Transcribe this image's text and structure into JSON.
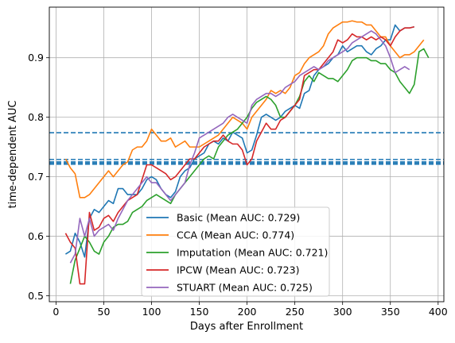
{
  "chart_data": {
    "type": "line",
    "xlabel": "Days after Enrollment",
    "ylabel": "time-dependent AUC",
    "xlim": [
      -7,
      406
    ],
    "ylim": [
      0.49,
      0.985
    ],
    "xticks": [
      0,
      50,
      100,
      150,
      200,
      250,
      300,
      350,
      400
    ],
    "yticks": [
      0.5,
      0.6,
      0.7,
      0.8,
      0.9
    ],
    "ytick_labels": [
      "0.5",
      "0.6",
      "0.7",
      "0.8",
      "0.9"
    ],
    "grid": true,
    "legend_position": "lower-center",
    "series": [
      {
        "name": "Basic (Mean AUC: 0.729)",
        "color": "#1f77b4",
        "mean": 0.729,
        "x": [
          10,
          15,
          20,
          25,
          30,
          35,
          40,
          45,
          50,
          55,
          60,
          65,
          70,
          75,
          80,
          85,
          90,
          95,
          100,
          105,
          110,
          115,
          120,
          125,
          130,
          135,
          140,
          145,
          150,
          155,
          160,
          165,
          170,
          175,
          180,
          185,
          190,
          195,
          200,
          205,
          210,
          215,
          220,
          225,
          230,
          235,
          240,
          245,
          250,
          255,
          260,
          265,
          270,
          275,
          280,
          285,
          290,
          295,
          300,
          305,
          310,
          315,
          320,
          325,
          330,
          335,
          340,
          345,
          350,
          355,
          360,
          365,
          370,
          375
        ],
        "y": [
          0.57,
          0.575,
          0.605,
          0.59,
          0.565,
          0.63,
          0.645,
          0.64,
          0.65,
          0.66,
          0.655,
          0.68,
          0.68,
          0.67,
          0.67,
          0.67,
          0.68,
          0.695,
          0.7,
          0.695,
          0.68,
          0.67,
          0.665,
          0.675,
          0.7,
          0.71,
          0.715,
          0.73,
          0.735,
          0.74,
          0.755,
          0.76,
          0.755,
          0.765,
          0.76,
          0.775,
          0.77,
          0.765,
          0.74,
          0.745,
          0.77,
          0.8,
          0.805,
          0.8,
          0.795,
          0.8,
          0.81,
          0.815,
          0.82,
          0.815,
          0.84,
          0.845,
          0.87,
          0.88,
          0.885,
          0.89,
          0.9,
          0.905,
          0.92,
          0.91,
          0.915,
          0.92,
          0.92,
          0.91,
          0.905,
          0.915,
          0.92,
          0.93,
          0.93,
          0.955,
          0.945,
          0.95,
          0.95,
          0.952
        ]
      },
      {
        "name": "CCA (Mean AUC: 0.774)",
        "color": "#ff7f0e",
        "mean": 0.774,
        "x": [
          10,
          15,
          20,
          25,
          30,
          35,
          40,
          45,
          50,
          55,
          60,
          65,
          70,
          75,
          80,
          85,
          90,
          95,
          100,
          105,
          110,
          115,
          120,
          125,
          130,
          135,
          140,
          145,
          150,
          155,
          160,
          165,
          170,
          175,
          180,
          185,
          190,
          195,
          200,
          205,
          210,
          215,
          220,
          225,
          230,
          235,
          240,
          245,
          250,
          255,
          260,
          265,
          270,
          275,
          280,
          285,
          290,
          295,
          300,
          305,
          310,
          315,
          320,
          325,
          330,
          335,
          340,
          345,
          350,
          355,
          360,
          365,
          370,
          375,
          380,
          385
        ],
        "y": [
          0.73,
          0.715,
          0.705,
          0.665,
          0.665,
          0.67,
          0.68,
          0.69,
          0.7,
          0.71,
          0.7,
          0.71,
          0.72,
          0.725,
          0.745,
          0.75,
          0.75,
          0.76,
          0.78,
          0.77,
          0.76,
          0.76,
          0.765,
          0.75,
          0.755,
          0.76,
          0.75,
          0.75,
          0.75,
          0.755,
          0.76,
          0.765,
          0.77,
          0.78,
          0.79,
          0.8,
          0.795,
          0.79,
          0.78,
          0.8,
          0.81,
          0.82,
          0.83,
          0.845,
          0.84,
          0.845,
          0.84,
          0.85,
          0.87,
          0.875,
          0.89,
          0.9,
          0.905,
          0.91,
          0.92,
          0.94,
          0.95,
          0.955,
          0.96,
          0.96,
          0.962,
          0.96,
          0.96,
          0.955,
          0.955,
          0.945,
          0.935,
          0.935,
          0.92,
          0.91,
          0.9,
          0.905,
          0.905,
          0.91,
          0.92,
          0.93
        ]
      },
      {
        "name": "Imputation (Mean AUC: 0.721)",
        "color": "#2ca02c",
        "mean": 0.721,
        "x": [
          15,
          20,
          25,
          30,
          35,
          40,
          45,
          50,
          55,
          60,
          65,
          70,
          75,
          80,
          85,
          90,
          95,
          100,
          105,
          110,
          115,
          120,
          125,
          130,
          135,
          140,
          145,
          150,
          155,
          160,
          165,
          170,
          175,
          180,
          185,
          190,
          195,
          200,
          205,
          210,
          215,
          220,
          225,
          230,
          235,
          240,
          245,
          250,
          255,
          260,
          265,
          270,
          275,
          280,
          285,
          290,
          295,
          300,
          305,
          310,
          315,
          320,
          325,
          330,
          335,
          340,
          345,
          350,
          355,
          360,
          365,
          370,
          375,
          380,
          385,
          390
        ],
        "y": [
          0.52,
          0.56,
          0.58,
          0.6,
          0.59,
          0.575,
          0.57,
          0.59,
          0.6,
          0.615,
          0.62,
          0.62,
          0.625,
          0.64,
          0.645,
          0.65,
          0.66,
          0.665,
          0.67,
          0.665,
          0.66,
          0.655,
          0.67,
          0.68,
          0.69,
          0.7,
          0.71,
          0.72,
          0.73,
          0.735,
          0.73,
          0.75,
          0.76,
          0.77,
          0.775,
          0.78,
          0.79,
          0.8,
          0.815,
          0.825,
          0.83,
          0.835,
          0.83,
          0.82,
          0.8,
          0.8,
          0.81,
          0.82,
          0.835,
          0.86,
          0.87,
          0.86,
          0.875,
          0.87,
          0.865,
          0.865,
          0.86,
          0.87,
          0.88,
          0.895,
          0.9,
          0.9,
          0.9,
          0.895,
          0.895,
          0.89,
          0.89,
          0.88,
          0.875,
          0.86,
          0.85,
          0.84,
          0.855,
          0.91,
          0.915,
          0.9
        ]
      },
      {
        "name": "IPCW (Mean AUC: 0.723)",
        "color": "#d62728",
        "mean": 0.723,
        "x": [
          10,
          15,
          20,
          25,
          30,
          35,
          40,
          45,
          50,
          55,
          60,
          65,
          70,
          75,
          80,
          85,
          90,
          95,
          100,
          105,
          110,
          115,
          120,
          125,
          130,
          135,
          140,
          145,
          150,
          155,
          160,
          165,
          170,
          175,
          180,
          185,
          190,
          195,
          200,
          205,
          210,
          215,
          220,
          225,
          230,
          235,
          240,
          245,
          250,
          255,
          260,
          265,
          270,
          275,
          280,
          285,
          290,
          295,
          300,
          305,
          310,
          315,
          320,
          325,
          330,
          335,
          340,
          345,
          350,
          355,
          360,
          365,
          370,
          375
        ],
        "y": [
          0.605,
          0.59,
          0.58,
          0.52,
          0.52,
          0.64,
          0.61,
          0.615,
          0.63,
          0.635,
          0.625,
          0.64,
          0.65,
          0.66,
          0.665,
          0.67,
          0.695,
          0.72,
          0.72,
          0.715,
          0.71,
          0.705,
          0.695,
          0.7,
          0.71,
          0.72,
          0.73,
          0.73,
          0.74,
          0.75,
          0.755,
          0.76,
          0.76,
          0.77,
          0.76,
          0.755,
          0.755,
          0.745,
          0.72,
          0.73,
          0.76,
          0.775,
          0.79,
          0.78,
          0.78,
          0.795,
          0.8,
          0.81,
          0.82,
          0.83,
          0.87,
          0.875,
          0.88,
          0.88,
          0.89,
          0.9,
          0.91,
          0.93,
          0.925,
          0.93,
          0.94,
          0.935,
          0.935,
          0.93,
          0.935,
          0.93,
          0.935,
          0.93,
          0.92,
          0.935,
          0.945,
          0.95,
          0.95,
          0.952
        ]
      },
      {
        "name": "STUART (Mean AUC: 0.725)",
        "color": "#9467bd",
        "mean": 0.725,
        "x": [
          15,
          20,
          25,
          30,
          35,
          40,
          45,
          50,
          55,
          60,
          65,
          70,
          75,
          80,
          85,
          90,
          95,
          100,
          105,
          110,
          115,
          120,
          125,
          130,
          135,
          140,
          145,
          150,
          155,
          160,
          165,
          170,
          175,
          180,
          185,
          190,
          195,
          200,
          205,
          210,
          215,
          220,
          225,
          230,
          235,
          240,
          245,
          250,
          255,
          260,
          265,
          270,
          275,
          280,
          285,
          290,
          295,
          300,
          305,
          310,
          315,
          320,
          325,
          330,
          335,
          340,
          345,
          350,
          355,
          360,
          365,
          370
        ],
        "y": [
          0.555,
          0.57,
          0.63,
          0.6,
          0.63,
          0.6,
          0.61,
          0.615,
          0.62,
          0.61,
          0.63,
          0.645,
          0.66,
          0.67,
          0.68,
          0.69,
          0.7,
          0.69,
          0.69,
          0.68,
          0.67,
          0.66,
          0.67,
          0.68,
          0.69,
          0.72,
          0.74,
          0.765,
          0.77,
          0.775,
          0.78,
          0.785,
          0.79,
          0.8,
          0.805,
          0.8,
          0.795,
          0.79,
          0.82,
          0.83,
          0.835,
          0.84,
          0.84,
          0.835,
          0.84,
          0.85,
          0.855,
          0.86,
          0.87,
          0.875,
          0.88,
          0.885,
          0.88,
          0.885,
          0.895,
          0.9,
          0.905,
          0.91,
          0.915,
          0.925,
          0.93,
          0.935,
          0.94,
          0.945,
          0.94,
          0.93,
          0.92,
          0.9,
          0.875,
          0.88,
          0.885,
          0.88
        ]
      }
    ]
  }
}
